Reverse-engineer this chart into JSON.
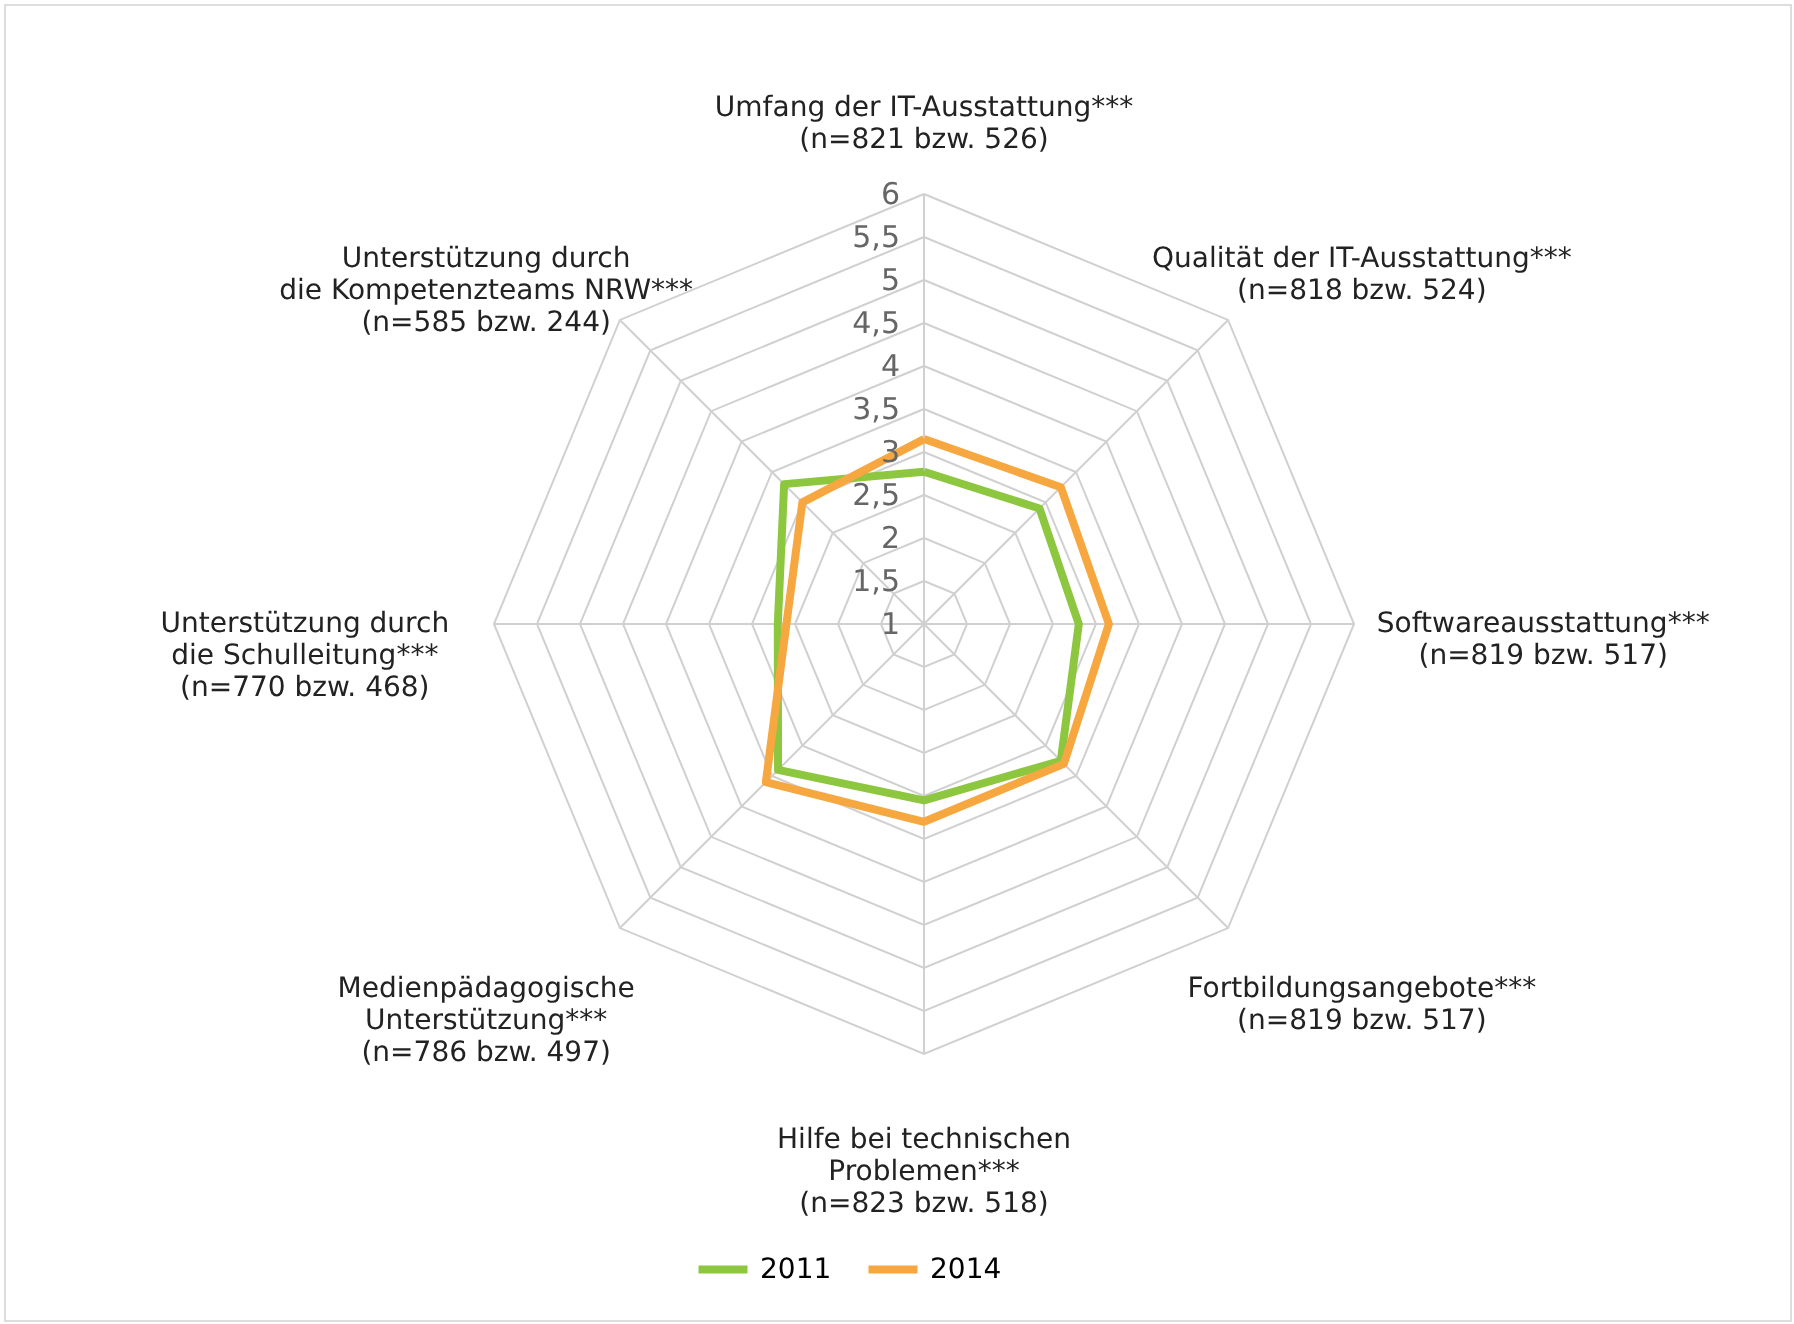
{
  "chart_data": {
    "type": "radar",
    "categories": [
      "Umfang der IT-Ausstattung***\n(n=821 bzw. 526)",
      "Qualität der IT-Ausstattung***\n(n=818 bzw. 524)",
      "Softwareausstattung***\n(n=819 bzw. 517)",
      "Fortbildungsangebote***\n(n=819 bzw. 517)",
      "Hilfe bei technischen\nProblemen***\n(n=823 bzw. 518)",
      "Medienpädagogische\nUnterstützung***\n(n=786 bzw. 497)",
      "Unterstützung durch\ndie Schulleitung***\n(n=770 bzw. 468)",
      "Unterstützung durch\ndie Kompetenzteams NRW***\n(n=585 bzw. 244)"
    ],
    "series": [
      {
        "name": "2011",
        "color": "#8dc63f",
        "values": [
          2.77,
          2.9,
          2.8,
          3.25,
          3.05,
          3.4,
          2.7,
          3.3
        ]
      },
      {
        "name": "2014",
        "color": "#f7a740",
        "values": [
          3.15,
          3.25,
          3.15,
          3.3,
          3.3,
          3.6,
          2.6,
          3.0
        ]
      }
    ],
    "ylim": [
      1,
      6
    ],
    "yticks": [
      {
        "value": 1,
        "label": "1"
      },
      {
        "value": 1.5,
        "label": "1,5"
      },
      {
        "value": 2,
        "label": "2"
      },
      {
        "value": 2.5,
        "label": "2,5"
      },
      {
        "value": 3,
        "label": "3"
      },
      {
        "value": 3.5,
        "label": "3,5"
      },
      {
        "value": 4,
        "label": "4"
      },
      {
        "value": 4.5,
        "label": "4,5"
      },
      {
        "value": 5,
        "label": "5"
      },
      {
        "value": 5.5,
        "label": "5,5"
      },
      {
        "value": 6,
        "label": "6"
      }
    ],
    "legend": "bottom"
  }
}
